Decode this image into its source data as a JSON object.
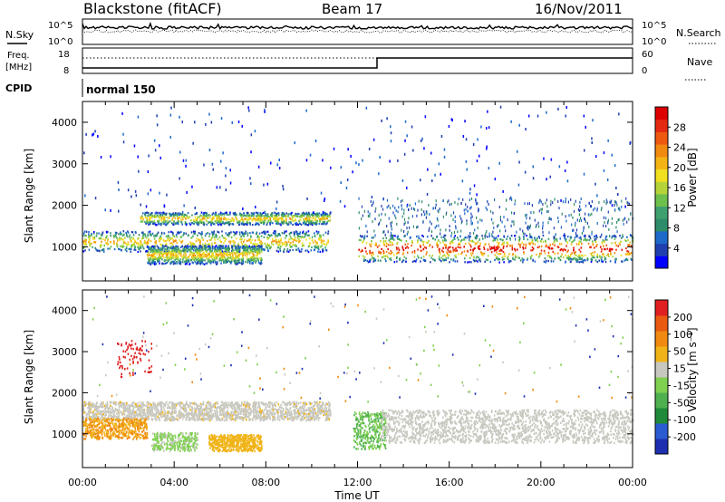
{
  "header": {
    "station": "Blackstone (fitACF)",
    "beam": "Beam 17",
    "date": "16/Nov/2011"
  },
  "top_panels": {
    "nsky_label": "N.Sky",
    "nsearch_label": "N.Search",
    "nsky_ticks": [
      "10^5",
      "10^0"
    ],
    "nsearch_ticks": [
      "10^5",
      "10^0"
    ],
    "freq_label": "Freq.",
    "freq_unit": "[MHz]",
    "freq_ticks": [
      "18",
      "8"
    ],
    "nave_label": "Nave",
    "nave_ticks": [
      "60",
      "0"
    ],
    "cpid_label": "CPID",
    "cpid_value": "normal 150"
  },
  "chart_data": [
    {
      "type": "heatmap",
      "quantity": "Power",
      "ylabel": "Slant Range [km]",
      "xlabel": "Time UT",
      "x_ticks": [
        "00:00",
        "04:00",
        "08:00",
        "12:00",
        "16:00",
        "20:00",
        "00:00"
      ],
      "xlim_hours": [
        0,
        24
      ],
      "y_ticks": [
        1000,
        2000,
        3000,
        4000
      ],
      "ylim_km": [
        180,
        4500
      ],
      "colorbar": {
        "label": "Power [dB]",
        "ticks": [
          "28",
          "24",
          "20",
          "16",
          "12",
          "8",
          "4"
        ],
        "colors": [
          "#0000ff",
          "#1f3fae",
          "#1d69c9",
          "#2f8c6a",
          "#3fa070",
          "#6ec04c",
          "#b6d43a",
          "#f0e020",
          "#f4b414",
          "#f28a0f",
          "#ee5a10",
          "#e42a10",
          "#dd0000"
        ]
      },
      "scatter_bands": [
        {
          "t0": 0.0,
          "t1": 10.7,
          "r0": 900,
          "r1": 1400
        },
        {
          "t0": 2.5,
          "t1": 10.8,
          "r0": 1550,
          "r1": 1850
        },
        {
          "t0": 2.8,
          "t1": 7.8,
          "r0": 600,
          "r1": 1050
        },
        {
          "t0": 12.0,
          "t1": 24.0,
          "r0": 650,
          "r1": 1300
        }
      ]
    },
    {
      "type": "heatmap",
      "quantity": "Velocity",
      "ylabel": "Slant Range [km]",
      "xlabel": "Time UT",
      "x_ticks": [
        "00:00",
        "04:00",
        "08:00",
        "12:00",
        "16:00",
        "20:00",
        "00:00"
      ],
      "y_ticks": [
        1000,
        2000,
        3000,
        4000
      ],
      "colorbar": {
        "label": "Velocity [m s⁻¹]",
        "ticks": [
          "200",
          "100",
          "50",
          "15",
          "-15",
          "-50",
          "-100",
          "-200"
        ],
        "colors": [
          "#1d2fb0",
          "#2b5bd0",
          "#1f8a3a",
          "#4fb04f",
          "#7fd050",
          "#c8c8c0",
          "#f0b418",
          "#f08a10",
          "#ea5a10",
          "#e02020"
        ]
      }
    }
  ]
}
